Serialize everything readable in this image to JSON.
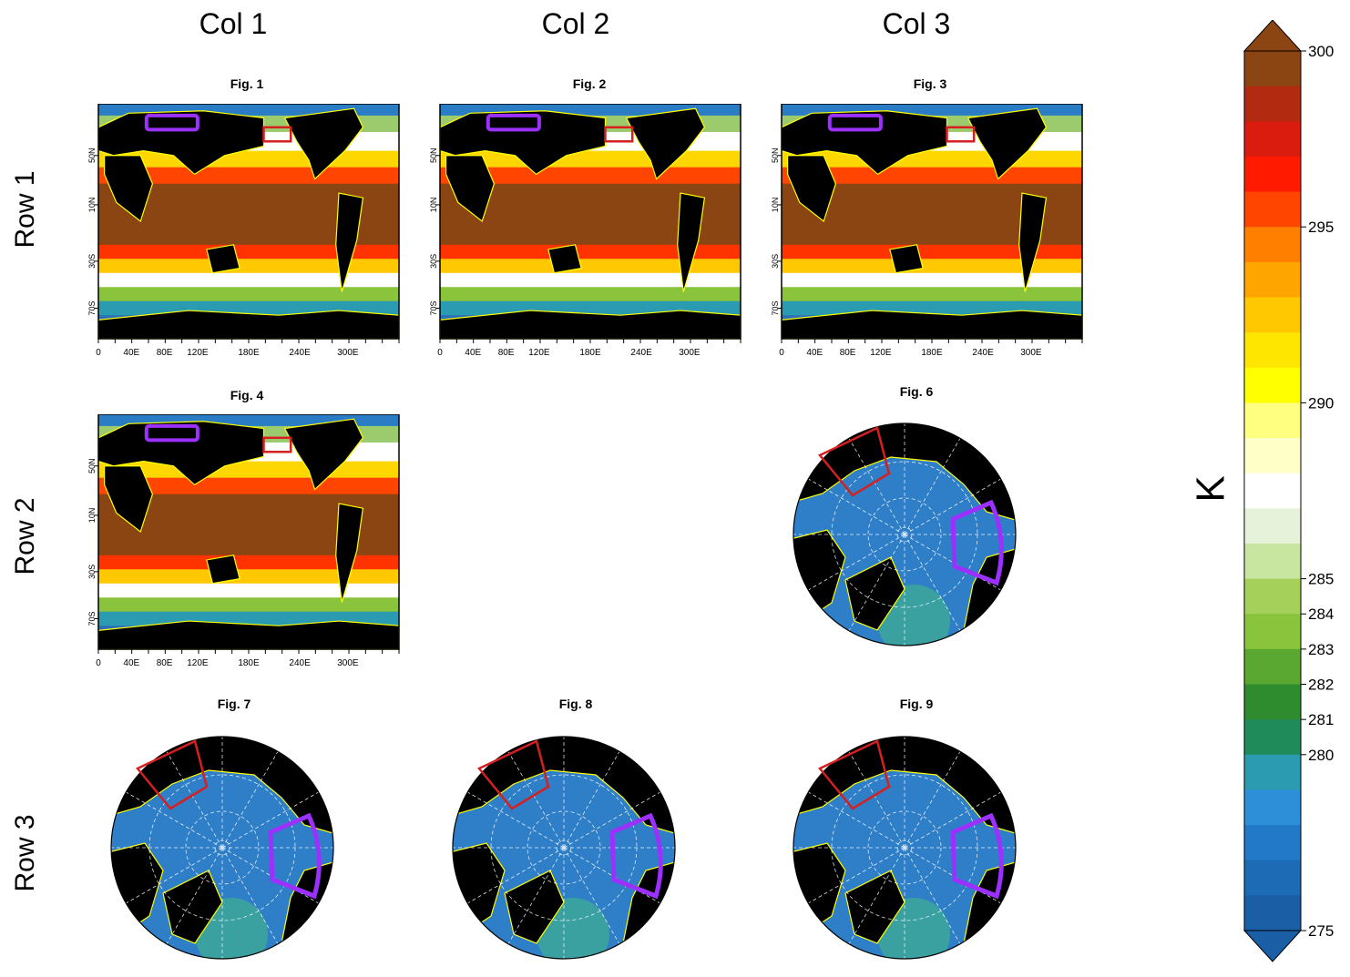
{
  "columns": [
    "Col 1",
    "Col 2",
    "Col 3"
  ],
  "rows": [
    "Row 1",
    "Row 2",
    "Row 3"
  ],
  "figures": {
    "fig1": {
      "title": "Fig. 1",
      "type": "global"
    },
    "fig2": {
      "title": "Fig. 2",
      "type": "global"
    },
    "fig3": {
      "title": "Fig. 3",
      "type": "global"
    },
    "fig4": {
      "title": "Fig. 4",
      "type": "global"
    },
    "fig6": {
      "title": "Fig. 6",
      "type": "polar"
    },
    "fig7": {
      "title": "Fig. 7",
      "type": "polar"
    },
    "fig8": {
      "title": "Fig. 8",
      "type": "polar"
    },
    "fig9": {
      "title": "Fig. 9",
      "type": "polar"
    }
  },
  "lat_ticks": [
    "50N",
    "10N",
    "30S",
    "70S"
  ],
  "lon_ticks": [
    "0",
    "40E",
    "80E",
    "120E",
    "180E",
    "240E",
    "300E"
  ],
  "colorbar": {
    "unit": "K",
    "labels": [
      "300",
      "295",
      "290",
      "285",
      "284",
      "283",
      "282",
      "281",
      "280",
      "275"
    ],
    "colors": [
      "#8b4513",
      "#b22a10",
      "#d91c0e",
      "#ff1a00",
      "#ff4500",
      "#ff7f00",
      "#ffa500",
      "#ffc800",
      "#ffe600",
      "#ffff00",
      "#ffff80",
      "#ffffc8",
      "#ffffff",
      "#e6f2d9",
      "#c8e6a0",
      "#a5d05a",
      "#8ac43c",
      "#5aa832",
      "#2e8b2e",
      "#1f8a5a",
      "#2a9bb0",
      "#2c8fd8",
      "#2179c8",
      "#1e6bb5",
      "#1a5ea5"
    ],
    "over_color": "#8b4513",
    "under_color": "#1a5ea5"
  },
  "box_colors": {
    "red": "#d42020",
    "purple": "#9b30ff",
    "coast": "#ffff00"
  }
}
